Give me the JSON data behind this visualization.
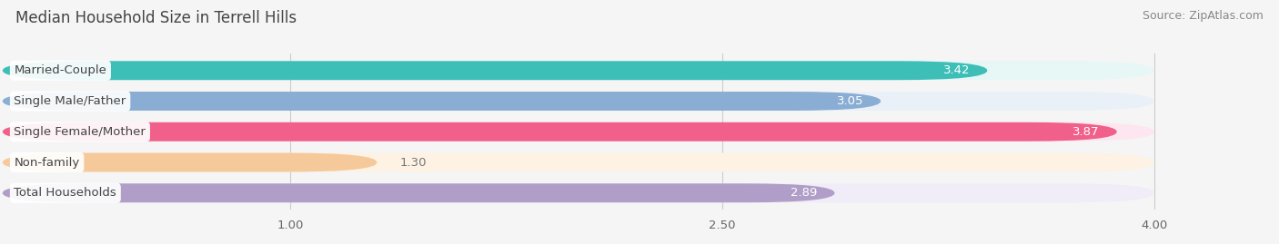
{
  "title": "Median Household Size in Terrell Hills",
  "source": "Source: ZipAtlas.com",
  "categories": [
    "Married-Couple",
    "Single Male/Father",
    "Single Female/Mother",
    "Non-family",
    "Total Households"
  ],
  "values": [
    3.42,
    3.05,
    3.87,
    1.3,
    2.89
  ],
  "bar_colors": [
    "#3dbfb8",
    "#8aadd4",
    "#f0608a",
    "#f5c99a",
    "#b09ec8"
  ],
  "bar_bg_colors": [
    "#e6f7f6",
    "#eaf0f8",
    "#fde6ef",
    "#fdf2e3",
    "#f0ecf8"
  ],
  "xlim_data": [
    0,
    4.3
  ],
  "xlim_display": [
    0,
    4.0
  ],
  "xticks": [
    1.0,
    2.5,
    4.0
  ],
  "label_fontsize": 9.5,
  "value_fontsize": 9.5,
  "title_fontsize": 12,
  "source_fontsize": 9,
  "title_color": "#444444",
  "source_color": "#888888",
  "label_text_color": "#444444",
  "value_color_inside": "#ffffff",
  "value_color_outside": "#777777",
  "bar_height": 0.62,
  "background_color": "#f5f5f5",
  "grid_color": "#cccccc"
}
